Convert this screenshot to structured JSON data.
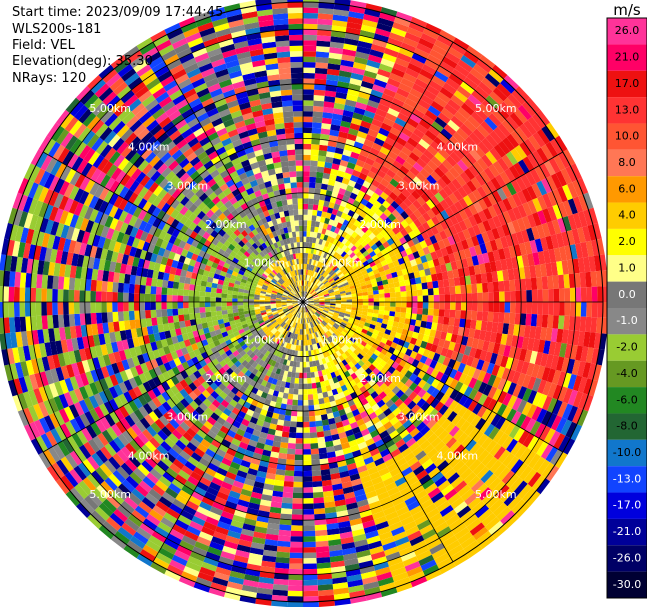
{
  "header": {
    "start_time": "Start time: 2023/09/09 17:44:45",
    "instrument": "WLS200s-181",
    "field": "Field: VEL",
    "elevation": "Elevation(deg): 35.30",
    "nrays": "NRays: 120"
  },
  "chart_data": {
    "type": "heatmap",
    "projection": "polar-ppi",
    "field": "VEL",
    "units": "m/s",
    "n_rays": 120,
    "range_rings_km": [
      1.0,
      2.0,
      3.0,
      4.0,
      5.0
    ],
    "range_labels": [
      "1.00km",
      "2.00km",
      "3.00km",
      "4.00km",
      "5.00km"
    ],
    "colorbar": {
      "title": "m/s",
      "levels": [
        26.0,
        21.0,
        17.0,
        13.0,
        10.0,
        8.0,
        6.0,
        4.0,
        2.0,
        1.0,
        0.0,
        -1.0,
        -2.0,
        -4.0,
        -6.0,
        -8.0,
        -10.0,
        -13.0,
        -17.0,
        -21.0,
        -26.0,
        -30.0
      ],
      "tick_labels": [
        "26.0",
        "21.0",
        "17.0",
        "13.0",
        "10.0",
        "8.0",
        "6.0",
        "4.0",
        "2.0",
        "1.0",
        "0.0",
        "-1.0",
        "-2.0",
        "-4.0",
        "-6.0",
        "-8.0",
        "-10.0",
        "-13.0",
        "-17.0",
        "-21.0",
        "-26.0",
        "-30.0"
      ],
      "colors": [
        "#ff3399",
        "#ff0066",
        "#ee1111",
        "#ff3333",
        "#ff5533",
        "#ff7755",
        "#ff9900",
        "#ffcc00",
        "#ffff00",
        "#ffff88",
        "#777777",
        "#888888",
        "#99cc33",
        "#669922",
        "#228822",
        "#226633",
        "#1177cc",
        "#1144ff",
        "#0000dd",
        "#000099",
        "#000066",
        "#000033"
      ]
    }
  }
}
